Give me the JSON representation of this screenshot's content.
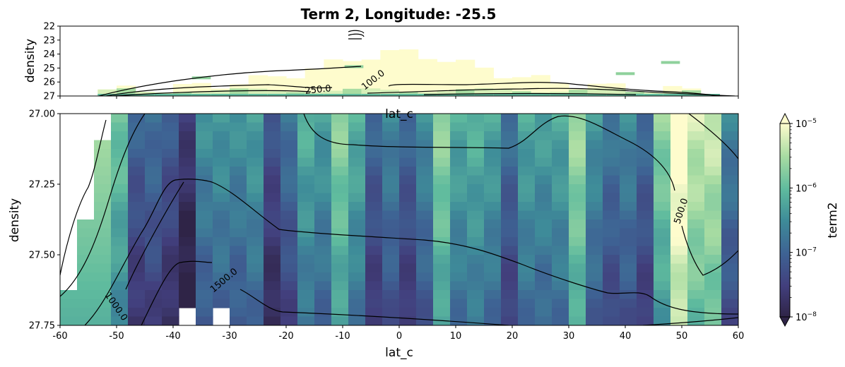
{
  "chart_data": [
    {
      "type": "heatmap",
      "panel": "top",
      "title": "Term 2, Longitude: -25.5",
      "xlabel": "lat_c",
      "ylabel": "density",
      "xlim": [
        -60,
        60
      ],
      "ylim": [
        27,
        22
      ],
      "y_ticks": [
        "22",
        "23",
        "24",
        "25",
        "26",
        "27"
      ],
      "x_tick_labels_visible": false,
      "contour_labels": [
        "250.0",
        "100.0"
      ]
    },
    {
      "type": "heatmap",
      "panel": "bottom",
      "xlabel": "lat_c",
      "ylabel": "density",
      "xlim": [
        -60,
        60
      ],
      "ylim": [
        27.75,
        27.0
      ],
      "x_ticks": [
        "-60",
        "-50",
        "-40",
        "-30",
        "-20",
        "-10",
        "0",
        "10",
        "20",
        "30",
        "40",
        "50",
        "60"
      ],
      "y_ticks": [
        "27.00",
        "27.25",
        "27.50",
        "27.75"
      ],
      "contour_labels": [
        "500.0",
        "1500.0",
        "1000.0"
      ],
      "colorbar": {
        "label": "term2",
        "scale": "log",
        "range": [
          1e-08,
          1e-05
        ],
        "ticks": [
          "10",
          "10",
          "10",
          "10"
        ],
        "tick_exponents": [
          "−5",
          "−6",
          "−7",
          "−8"
        ],
        "colormap": [
          "#fefccd",
          "#a8dca2",
          "#5fbb9e",
          "#3e8c99",
          "#3e6394",
          "#423f7d",
          "#2f2447"
        ]
      }
    }
  ]
}
